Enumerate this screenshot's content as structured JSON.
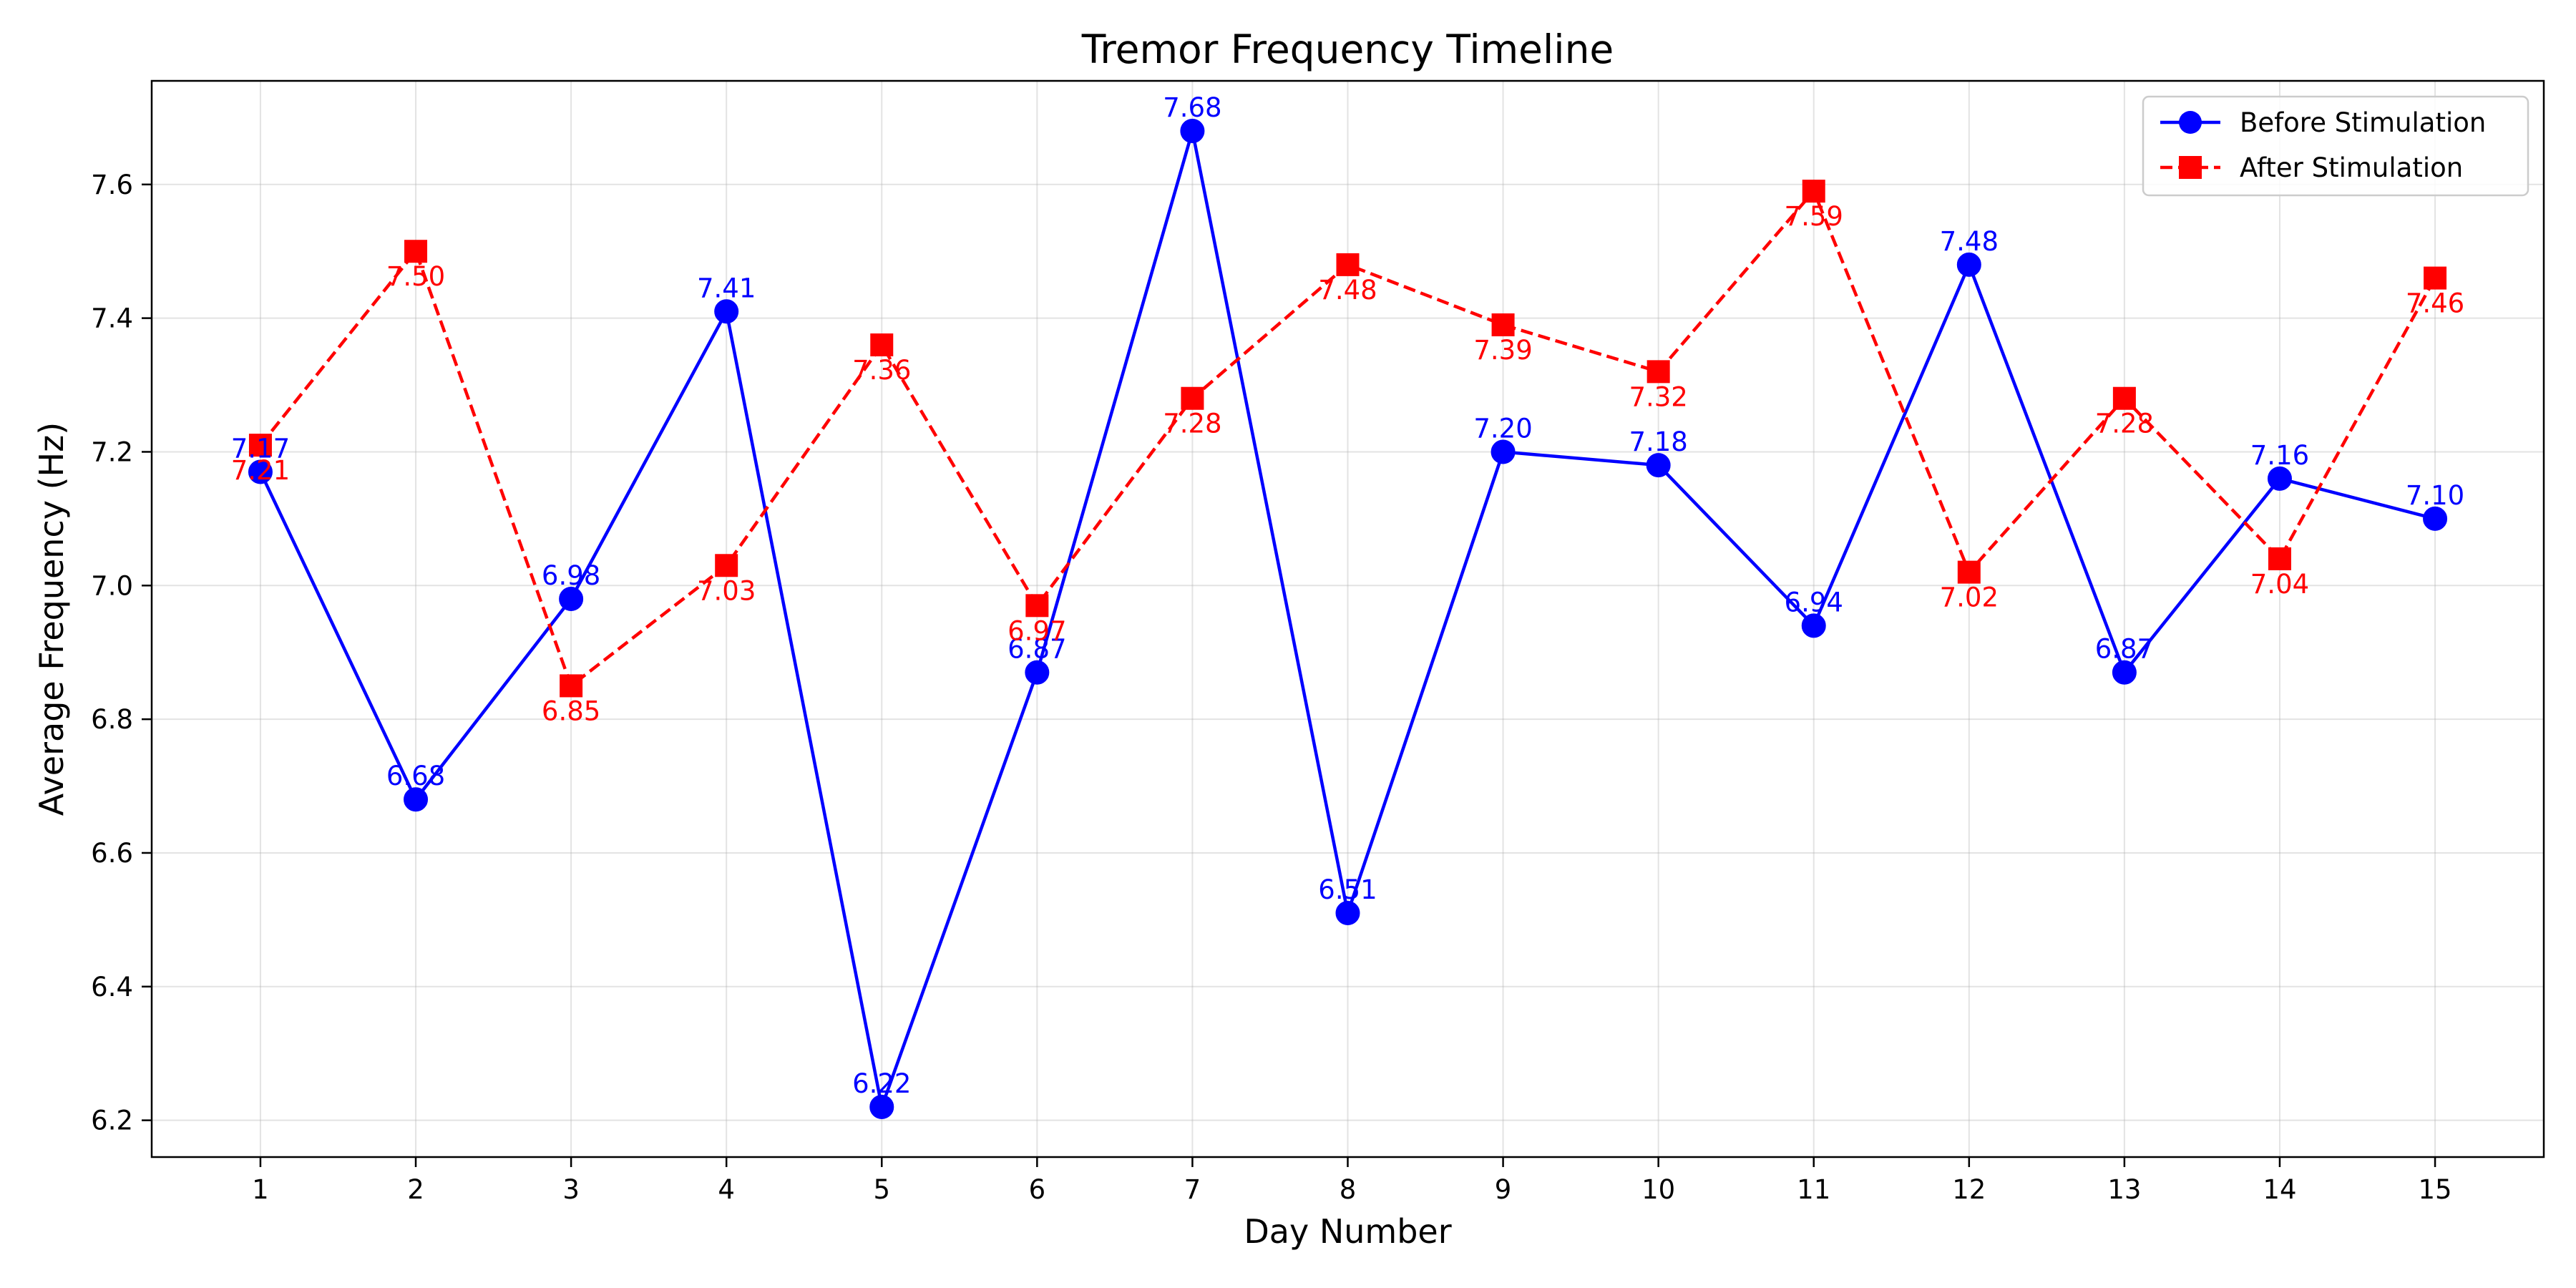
{
  "chart_data": {
    "type": "line",
    "title": "Tremor Frequency Timeline",
    "xlabel": "Day Number",
    "ylabel": "Average Frequency (Hz)",
    "x": [
      1,
      2,
      3,
      4,
      5,
      6,
      7,
      8,
      9,
      10,
      11,
      12,
      13,
      14,
      15
    ],
    "x_tick_labels": [
      "1",
      "2",
      "3",
      "4",
      "5",
      "6",
      "7",
      "8",
      "9",
      "10",
      "11",
      "12",
      "13",
      "14",
      "15"
    ],
    "xlim": [
      0.3,
      15.7
    ],
    "ylim": [
      6.145,
      7.755
    ],
    "y_ticks": [
      6.2,
      6.4,
      6.6,
      6.8,
      7.0,
      7.2,
      7.4,
      7.6
    ],
    "y_tick_labels": [
      "6.2",
      "6.4",
      "6.6",
      "6.8",
      "7.0",
      "7.2",
      "7.4",
      "7.6"
    ],
    "grid": true,
    "legend_position": "top-right",
    "series": [
      {
        "name": "Before Stimulation",
        "color": "#0000ff",
        "line_style": "solid",
        "marker": "circle",
        "label_position": "above",
        "values": [
          7.17,
          6.68,
          6.98,
          7.41,
          6.22,
          6.87,
          7.68,
          6.51,
          7.2,
          7.18,
          6.94,
          7.48,
          6.87,
          7.16,
          7.1
        ],
        "labels": [
          "7.17",
          "6.68",
          "6.98",
          "7.41",
          "6.22",
          "6.87",
          "7.68",
          "6.51",
          "7.20",
          "7.18",
          "6.94",
          "7.48",
          "6.87",
          "7.16",
          "7.10"
        ]
      },
      {
        "name": "After Stimulation",
        "color": "#ff0000",
        "line_style": "dashed",
        "marker": "square",
        "label_position": "below",
        "values": [
          7.21,
          7.5,
          6.85,
          7.03,
          7.36,
          6.97,
          7.28,
          7.48,
          7.39,
          7.32,
          7.59,
          7.02,
          7.28,
          7.04,
          7.46
        ],
        "labels": [
          "7.21",
          "7.50",
          "6.85",
          "7.03",
          "7.36",
          "6.97",
          "7.28",
          "7.48",
          "7.39",
          "7.32",
          "7.59",
          "7.02",
          "7.28",
          "7.04",
          "7.46"
        ]
      }
    ]
  }
}
